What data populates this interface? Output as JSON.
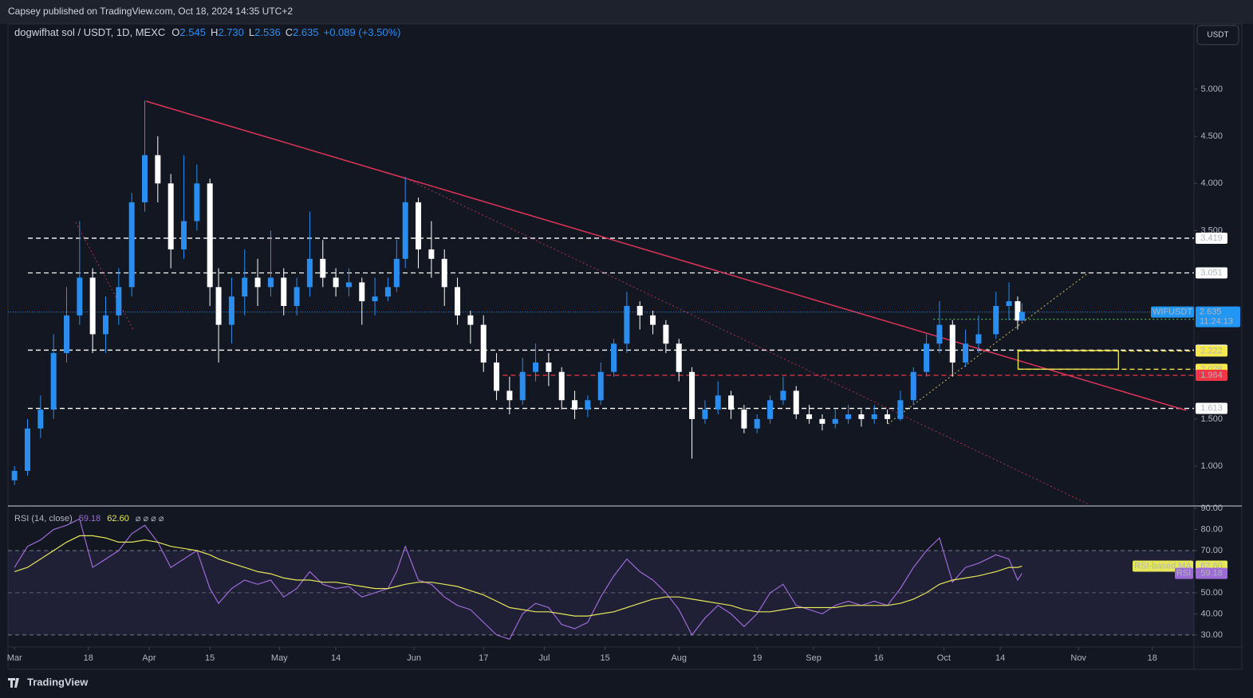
{
  "header": {
    "publisher": "Capsey published on TradingView.com, Oct 18, 2024 14:35 UTC+2",
    "symbol": "dogwifhat sol / USDT, 1D, MEXC",
    "ohlc": [
      {
        "key": "O",
        "value": 2.545,
        "label": "2.545"
      },
      {
        "key": "H",
        "value": 2.73,
        "label": "2.730"
      },
      {
        "key": "L",
        "value": 2.536,
        "label": "2.536"
      },
      {
        "key": "C",
        "value": 2.635,
        "label": "2.635"
      }
    ],
    "change": "+0.089 (+3.50%)",
    "currency": "USDT"
  },
  "footer": {
    "brand": "TradingView"
  },
  "chart_data": {
    "type": "candlestick",
    "up_color": "#2a8df0",
    "down_color": "#ffffff",
    "xlim": [
      -1.5,
      271.6
    ],
    "xticks": [
      {
        "value": 0,
        "label": "Mar"
      },
      {
        "value": 17,
        "label": "18"
      },
      {
        "value": 31,
        "label": "Apr"
      },
      {
        "value": 45,
        "label": "15"
      },
      {
        "value": 61,
        "label": "May"
      },
      {
        "value": 74,
        "label": "14"
      },
      {
        "value": 92,
        "label": "Jun"
      },
      {
        "value": 108,
        "label": "17"
      },
      {
        "value": 122,
        "label": "Jul"
      },
      {
        "value": 136,
        "label": "15"
      },
      {
        "value": 153,
        "label": "Aug"
      },
      {
        "value": 171,
        "label": "19"
      },
      {
        "value": 184,
        "label": "Sep"
      },
      {
        "value": 199,
        "label": "16"
      },
      {
        "value": 214,
        "label": "Oct"
      },
      {
        "value": 227,
        "label": "14"
      },
      {
        "value": 245,
        "label": "Nov"
      },
      {
        "value": 262,
        "label": "18"
      }
    ],
    "ylim": [
      0.586,
      5.693
    ],
    "yticks": [
      {
        "value": 1,
        "label": "1.000"
      },
      {
        "value": 1.5,
        "label": "1.500"
      },
      {
        "value": 3.5,
        "label": "3.500"
      },
      {
        "value": 4,
        "label": "4.000"
      },
      {
        "value": 4.5,
        "label": "4.500"
      },
      {
        "value": 5,
        "label": "5.000"
      }
    ],
    "candles": [
      [
        0,
        0.85,
        1.0,
        0.8,
        0.95
      ],
      [
        3,
        0.95,
        1.5,
        0.9,
        1.4
      ],
      [
        6,
        1.4,
        1.75,
        1.3,
        1.6
      ],
      [
        9,
        1.6,
        2.4,
        1.5,
        2.2
      ],
      [
        12,
        2.2,
        2.9,
        2.1,
        2.6
      ],
      [
        15,
        2.6,
        3.6,
        2.5,
        3.0
      ],
      [
        18,
        3.0,
        3.1,
        2.2,
        2.4
      ],
      [
        21,
        2.4,
        2.8,
        2.2,
        2.6
      ],
      [
        24,
        2.6,
        3.1,
        2.5,
        2.9
      ],
      [
        27,
        2.9,
        3.9,
        2.8,
        3.8
      ],
      [
        30,
        3.8,
        4.88,
        3.7,
        4.3
      ],
      [
        33,
        4.3,
        4.5,
        3.8,
        4.0
      ],
      [
        36,
        4.0,
        4.1,
        3.1,
        3.3
      ],
      [
        39,
        3.3,
        4.3,
        3.2,
        3.6
      ],
      [
        42,
        3.6,
        4.2,
        3.5,
        4.0
      ],
      [
        45,
        4.0,
        4.05,
        2.7,
        2.9
      ],
      [
        47,
        2.9,
        3.1,
        2.1,
        2.5
      ],
      [
        50,
        2.5,
        3.0,
        2.3,
        2.8
      ],
      [
        53,
        2.8,
        3.3,
        2.6,
        3.0
      ],
      [
        56,
        3.0,
        3.2,
        2.7,
        2.9
      ],
      [
        59,
        2.9,
        3.5,
        2.8,
        3.0
      ],
      [
        62,
        3.0,
        3.1,
        2.6,
        2.7
      ],
      [
        65,
        2.7,
        3.0,
        2.6,
        2.9
      ],
      [
        68,
        2.9,
        3.7,
        2.8,
        3.2
      ],
      [
        71,
        3.2,
        3.4,
        2.9,
        3.0
      ],
      [
        74,
        3.0,
        3.1,
        2.8,
        2.9
      ],
      [
        77,
        2.9,
        3.1,
        2.8,
        2.95
      ],
      [
        80,
        2.95,
        3.0,
        2.5,
        2.75
      ],
      [
        83,
        2.75,
        3.0,
        2.6,
        2.8
      ],
      [
        86,
        2.8,
        3.0,
        2.75,
        2.9
      ],
      [
        88,
        2.9,
        3.4,
        2.85,
        3.2
      ],
      [
        90,
        3.2,
        4.07,
        3.1,
        3.8
      ],
      [
        93,
        3.8,
        3.85,
        3.1,
        3.3
      ],
      [
        96,
        3.3,
        3.6,
        3.0,
        3.2
      ],
      [
        99,
        3.2,
        3.3,
        2.7,
        2.9
      ],
      [
        102,
        2.9,
        3.0,
        2.5,
        2.6
      ],
      [
        105,
        2.6,
        2.65,
        2.3,
        2.5
      ],
      [
        108,
        2.5,
        2.6,
        2.0,
        2.1
      ],
      [
        111,
        2.1,
        2.2,
        1.7,
        1.8
      ],
      [
        114,
        1.8,
        1.95,
        1.55,
        1.7
      ],
      [
        117,
        1.7,
        2.15,
        1.65,
        2.0
      ],
      [
        120,
        2.0,
        2.3,
        1.9,
        2.1
      ],
      [
        123,
        2.1,
        2.2,
        1.85,
        2.0
      ],
      [
        126,
        2.0,
        2.05,
        1.6,
        1.7
      ],
      [
        129,
        1.7,
        1.8,
        1.5,
        1.6
      ],
      [
        132,
        1.6,
        1.75,
        1.52,
        1.7
      ],
      [
        135,
        1.7,
        2.1,
        1.65,
        2.0
      ],
      [
        138,
        2.0,
        2.35,
        1.95,
        2.3
      ],
      [
        141,
        2.3,
        2.85,
        2.2,
        2.7
      ],
      [
        144,
        2.7,
        2.75,
        2.45,
        2.6
      ],
      [
        147,
        2.6,
        2.65,
        2.4,
        2.5
      ],
      [
        150,
        2.5,
        2.55,
        2.2,
        2.3
      ],
      [
        153,
        2.3,
        2.35,
        1.9,
        2.0
      ],
      [
        156,
        2.0,
        2.05,
        1.08,
        1.5
      ],
      [
        159,
        1.5,
        1.7,
        1.45,
        1.6
      ],
      [
        162,
        1.6,
        1.9,
        1.55,
        1.75
      ],
      [
        165,
        1.75,
        1.8,
        1.5,
        1.6
      ],
      [
        168,
        1.6,
        1.65,
        1.35,
        1.4
      ],
      [
        171,
        1.4,
        1.55,
        1.35,
        1.5
      ],
      [
        174,
        1.5,
        1.75,
        1.45,
        1.7
      ],
      [
        177,
        1.7,
        1.95,
        1.65,
        1.8
      ],
      [
        180,
        1.8,
        1.85,
        1.5,
        1.55
      ],
      [
        183,
        1.55,
        1.65,
        1.45,
        1.5
      ],
      [
        186,
        1.5,
        1.55,
        1.38,
        1.45
      ],
      [
        189,
        1.45,
        1.6,
        1.4,
        1.5
      ],
      [
        192,
        1.5,
        1.65,
        1.45,
        1.55
      ],
      [
        195,
        1.55,
        1.6,
        1.42,
        1.5
      ],
      [
        198,
        1.5,
        1.65,
        1.45,
        1.55
      ],
      [
        201,
        1.55,
        1.6,
        1.45,
        1.5
      ],
      [
        204,
        1.5,
        1.8,
        1.48,
        1.7
      ],
      [
        207,
        1.7,
        2.05,
        1.65,
        2.0
      ],
      [
        210,
        2.0,
        2.4,
        1.95,
        2.3
      ],
      [
        213,
        2.3,
        2.75,
        2.2,
        2.5
      ],
      [
        216,
        2.5,
        2.55,
        1.95,
        2.1
      ],
      [
        219,
        2.1,
        2.45,
        2.05,
        2.3
      ],
      [
        222,
        2.3,
        2.6,
        2.2,
        2.4
      ],
      [
        226,
        2.4,
        2.85,
        2.35,
        2.7
      ],
      [
        229,
        2.7,
        2.95,
        2.55,
        2.75
      ],
      [
        231,
        2.75,
        2.8,
        2.45,
        2.545
      ],
      [
        232,
        2.545,
        2.73,
        2.536,
        2.635
      ]
    ],
    "current_price": {
      "symbol": "WIFUSDT",
      "value": 2.635,
      "countdown": "11:24:13",
      "color": "#2196f3"
    },
    "levels": [
      {
        "value": 3.419,
        "from": 3.1,
        "color": "#ffffff",
        "text_color": "#131722",
        "style": "dashed"
      },
      {
        "value": 3.051,
        "from": 3.1,
        "color": "#ffffff",
        "text_color": "#131722",
        "style": "dashed"
      },
      {
        "value": 2.559,
        "from": 211.6,
        "color": "#4caf50",
        "text_color": "#ffffff",
        "style": "dotted"
      },
      {
        "value": 2.231,
        "from": 3.1,
        "color": "#ffffff",
        "text_color": "#131722",
        "style": "dashed"
      },
      {
        "value": 2.222,
        "from": 231.1,
        "color": "#f5e94d",
        "text_color": "#131722",
        "style": "dashed"
      },
      {
        "value": 2.028,
        "from": 231.1,
        "color": "#f5e94d",
        "text_color": "#131722",
        "style": "dashed"
      },
      {
        "value": 1.964,
        "from": 110.6,
        "color": "#f23645",
        "text_color": "#ffffff",
        "style": "dashed"
      },
      {
        "value": 1.613,
        "from": 3.1,
        "color": "#ffffff",
        "text_color": "#131722",
        "style": "dashed"
      }
    ],
    "trendlines": [
      {
        "points": [
          [
            30.3,
            4.873
          ],
          [
            269.8,
            1.592
          ]
        ],
        "color": "#e0345a",
        "style": "solid"
      },
      {
        "points": [
          [
            89.4,
            4.07
          ],
          [
            247.4,
            0.594
          ]
        ],
        "color": "#b0304f",
        "style": "dotted"
      },
      {
        "points": [
          [
            14.1,
            3.588
          ],
          [
            27.4,
            2.446
          ]
        ],
        "color": "#b0304f",
        "style": "dotted"
      },
      {
        "points": [
          [
            201.1,
            1.448
          ],
          [
            247.4,
            3.055
          ]
        ],
        "color": "#c8c060",
        "style": "dotted"
      }
    ],
    "box": {
      "x": [
        231.1,
        254.2
      ],
      "y": [
        2.029,
        2.227
      ],
      "color": "#f5e94d"
    },
    "rsi": {
      "title": "RSI (14, close)",
      "name": "RSI",
      "ma_name": "RSI-based MA",
      "value_label": "59.18",
      "ma_label": "62.60",
      "nulls": "⌀ ⌀ ⌀ ⌀",
      "color": "#9c6bd6",
      "ma_color": "#e6e65a",
      "ylim": [
        24.3,
        90.75
      ],
      "yticks": [
        {
          "value": 30,
          "label": "30.00"
        },
        {
          "value": 40,
          "label": "40.00"
        },
        {
          "value": 50,
          "label": "50.00"
        },
        {
          "value": 60,
          "label": "60.00"
        },
        {
          "value": 70,
          "label": "70.00"
        },
        {
          "value": 80,
          "label": "80.00"
        },
        {
          "value": 90,
          "label": "90.00"
        }
      ],
      "band": [
        30,
        70
      ],
      "midline": 50,
      "values": [
        62,
        72,
        75,
        80,
        82,
        85,
        62,
        66,
        70,
        78,
        82,
        74,
        62,
        66,
        70,
        52,
        45,
        52,
        56,
        54,
        56,
        48,
        52,
        60,
        54,
        52,
        53,
        48,
        50,
        52,
        60,
        72,
        56,
        54,
        48,
        44,
        42,
        36,
        30,
        28,
        40,
        45,
        43,
        35,
        33,
        36,
        48,
        58,
        66,
        60,
        56,
        50,
        42,
        30,
        38,
        44,
        40,
        34,
        40,
        50,
        54,
        44,
        42,
        40,
        44,
        46,
        44,
        46,
        44,
        52,
        62,
        70,
        76,
        55,
        62,
        64,
        68,
        66,
        56,
        59.18
      ],
      "ma": [
        60,
        62,
        66,
        70,
        74,
        77,
        77,
        76,
        74,
        74,
        75,
        74,
        72,
        71,
        70,
        68,
        66,
        64,
        62,
        60,
        59,
        57,
        56,
        56,
        55,
        55,
        54,
        53,
        52,
        52,
        53,
        54,
        55,
        55,
        54,
        53,
        51,
        49,
        46,
        43,
        42,
        41,
        41,
        40,
        39,
        39,
        40,
        41,
        43,
        45,
        47,
        48,
        48,
        47,
        46,
        45,
        44,
        42,
        41,
        41,
        42,
        43,
        43,
        43,
        43,
        44,
        44,
        44,
        44,
        45,
        47,
        50,
        54,
        56,
        57,
        58,
        60,
        62,
        62,
        62.6
      ]
    }
  }
}
